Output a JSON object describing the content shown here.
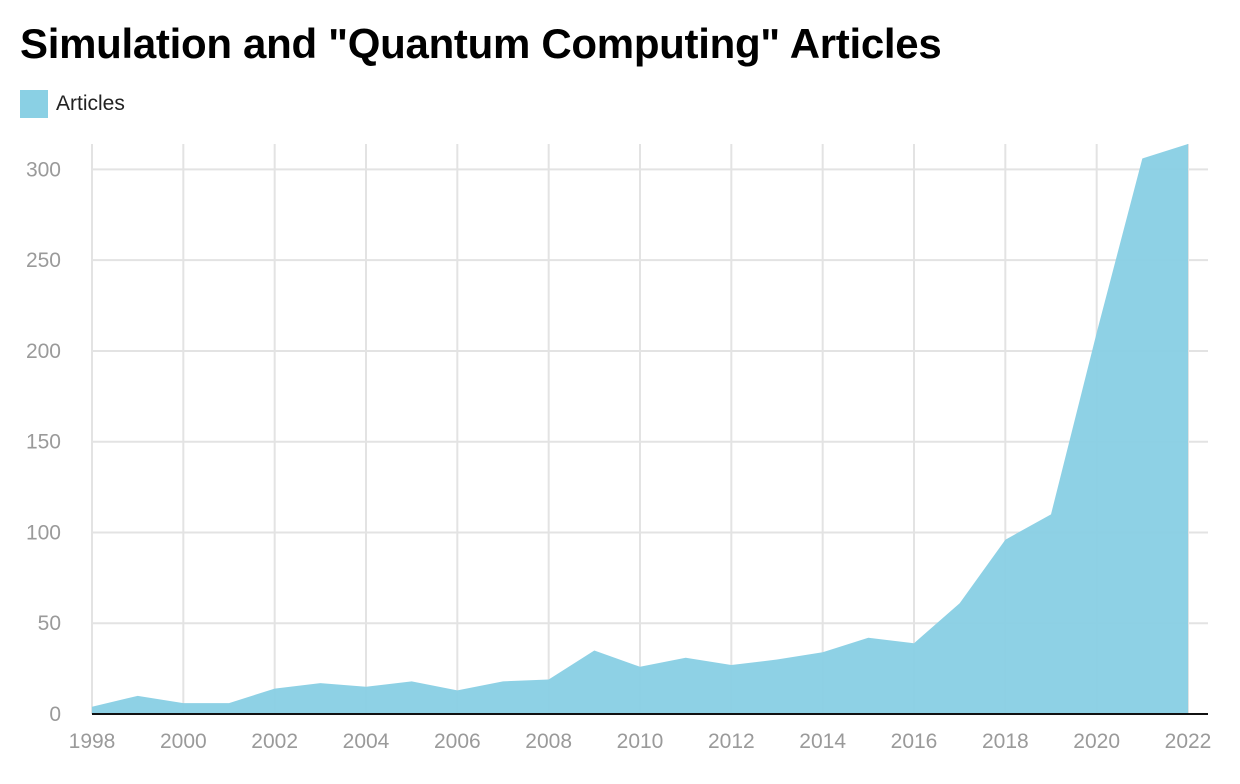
{
  "title": "Simulation and \"Quantum Computing\" Articles",
  "legend": {
    "label": "Articles"
  },
  "colors": {
    "area": "#8ad0e4",
    "grid": "#e3e3e3",
    "axis": "#111111",
    "tick_text": "#9a9a9a"
  },
  "chart_data": {
    "type": "area",
    "title": "Simulation and \"Quantum Computing\" Articles",
    "xlabel": "",
    "ylabel": "",
    "x": [
      1998,
      1999,
      2000,
      2001,
      2002,
      2003,
      2004,
      2005,
      2006,
      2007,
      2008,
      2009,
      2010,
      2011,
      2012,
      2013,
      2014,
      2015,
      2016,
      2017,
      2018,
      2019,
      2020,
      2021,
      2022
    ],
    "series": [
      {
        "name": "Articles",
        "values": [
          4,
          10,
          6,
          6,
          14,
          17,
          15,
          18,
          13,
          18,
          19,
          35,
          26,
          31,
          27,
          30,
          34,
          42,
          39,
          61,
          96,
          110,
          210,
          306,
          314
        ]
      }
    ],
    "xlim": [
      1998,
      2022
    ],
    "ylim": [
      0,
      314
    ],
    "x_ticks": [
      "1998",
      "2000",
      "2002",
      "2004",
      "2006",
      "2008",
      "2010",
      "2012",
      "2014",
      "2016",
      "2018",
      "2020",
      "2022"
    ],
    "y_ticks": [
      "0",
      "50",
      "100",
      "150",
      "200",
      "250",
      "300"
    ],
    "grid": true,
    "legend_position": "top-left"
  }
}
